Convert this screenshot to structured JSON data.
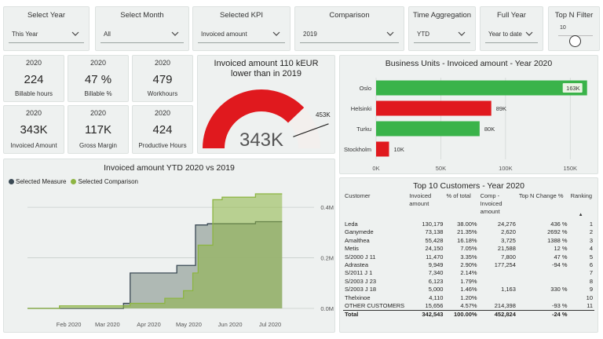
{
  "slicers": [
    {
      "title": "Select Year",
      "value": "This Year"
    },
    {
      "title": "Select Month",
      "value": "All"
    },
    {
      "title": "Selected KPI",
      "value": "Invoiced amount"
    },
    {
      "title": "Comparison",
      "value": "2019"
    },
    {
      "title": "Time Aggregation",
      "value": "YTD"
    },
    {
      "title": "Full Year",
      "value": "Year to date"
    }
  ],
  "topn": {
    "title": "Top N Filter",
    "value": "10"
  },
  "kpis": [
    {
      "year": "2020",
      "value": "224",
      "label": "Billable hours"
    },
    {
      "year": "2020",
      "value": "47 %",
      "label": "Billable %"
    },
    {
      "year": "2020",
      "value": "479",
      "label": "Workhours"
    },
    {
      "year": "2020",
      "value": "343K",
      "label": "Invoiced Amount"
    },
    {
      "year": "2020",
      "value": "117K",
      "label": "Gross Margin"
    },
    {
      "year": "2020",
      "value": "424",
      "label": "Productive Hours"
    }
  ],
  "gauge": {
    "title": "Invoiced amount 110 kEUR lower than in 2019",
    "value_label": "343K",
    "target_label": "453K",
    "value": 343,
    "target": 453,
    "max": 453,
    "fill_color": "#e0191e",
    "track_color": "#f3efed"
  },
  "line_chart": {
    "title": "Invoiced amount YTD 2020 vs 2019",
    "legend": [
      {
        "name": "Selected Measure",
        "color": "#3b4a55"
      },
      {
        "name": "Selected Comparison",
        "color": "#8db543"
      }
    ],
    "chart_data": {
      "type": "area",
      "x_ticks": [
        "Feb 2020",
        "Mar 2020",
        "Apr 2020",
        "May 2020",
        "Jun 2020",
        "Jul 2020"
      ],
      "y_ticks": [
        "0.0M",
        "0.2M",
        "0.4M"
      ],
      "ylim": [
        0,
        0.45
      ],
      "series": [
        {
          "name": "Selected Measure",
          "color": "#3b4a55",
          "points": [
            [
              "2020-01-01",
              0
            ],
            [
              "2020-03-13",
              0
            ],
            [
              "2020-03-13",
              0.02
            ],
            [
              "2020-03-18",
              0.02
            ],
            [
              "2020-03-18",
              0.14
            ],
            [
              "2020-04-22",
              0.14
            ],
            [
              "2020-04-22",
              0.17
            ],
            [
              "2020-05-06",
              0.17
            ],
            [
              "2020-05-06",
              0.33
            ],
            [
              "2020-05-15",
              0.33
            ],
            [
              "2020-05-15",
              0.335
            ],
            [
              "2020-06-20",
              0.335
            ],
            [
              "2020-06-20",
              0.343
            ],
            [
              "2020-07-10",
              0.343
            ]
          ]
        },
        {
          "name": "Selected Comparison",
          "color": "#8db543",
          "points": [
            [
              "2020-01-01",
              0
            ],
            [
              "2020-01-25",
              0
            ],
            [
              "2020-01-25",
              0.01
            ],
            [
              "2020-03-18",
              0.01
            ],
            [
              "2020-03-18",
              0.02
            ],
            [
              "2020-04-13",
              0.02
            ],
            [
              "2020-04-13",
              0.04
            ],
            [
              "2020-04-27",
              0.04
            ],
            [
              "2020-04-27",
              0.07
            ],
            [
              "2020-05-04",
              0.07
            ],
            [
              "2020-05-04",
              0.14
            ],
            [
              "2020-05-08",
              0.14
            ],
            [
              "2020-05-08",
              0.25
            ],
            [
              "2020-05-19",
              0.25
            ],
            [
              "2020-05-19",
              0.43
            ],
            [
              "2020-05-26",
              0.43
            ],
            [
              "2020-05-26",
              0.44
            ],
            [
              "2020-06-20",
              0.44
            ],
            [
              "2020-06-20",
              0.453
            ],
            [
              "2020-07-10",
              0.453
            ]
          ]
        }
      ]
    }
  },
  "bar_chart": {
    "title": "Business Units - Invoiced amount - Year 2020",
    "chart_data": {
      "type": "bar",
      "orientation": "horizontal",
      "categories": [
        "Oslo",
        "Helsinki",
        "Turku",
        "Stockholm"
      ],
      "values": [
        163,
        89,
        80,
        10
      ],
      "labels": [
        "163K",
        "89K",
        "80K",
        "10K"
      ],
      "colors": [
        "#3ab34a",
        "#e0191e",
        "#3ab34a",
        "#e0191e"
      ],
      "xlim": [
        0,
        165
      ],
      "x_ticks": [
        {
          "v": 0,
          "t": "0K"
        },
        {
          "v": 50,
          "t": "50K"
        },
        {
          "v": 100,
          "t": "100K"
        },
        {
          "v": 150,
          "t": "150K"
        }
      ]
    }
  },
  "table": {
    "title": "Top 10 Customers - Year 2020",
    "headers": [
      "Customer",
      "Invoiced amount",
      "% of total",
      "Comp - Invoiced amount",
      "Top N Change %",
      "Ranking"
    ],
    "rows": [
      [
        "Leda",
        "130,179",
        "38.00%",
        "24,276",
        "436 %",
        "1"
      ],
      [
        "Ganymede",
        "73,138",
        "21.35%",
        "2,620",
        "2692 %",
        "2"
      ],
      [
        "Amalthea",
        "55,428",
        "16.18%",
        "3,725",
        "1388 %",
        "3"
      ],
      [
        "Metis",
        "24,150",
        "7.05%",
        "21,588",
        "12 %",
        "4"
      ],
      [
        "S/2000 J 11",
        "11,470",
        "3.35%",
        "7,800",
        "47 %",
        "5"
      ],
      [
        "Adrastea",
        "9,949",
        "2.90%",
        "177,254",
        "-94 %",
        "6"
      ],
      [
        "S/2011 J 1",
        "7,340",
        "2.14%",
        "",
        "",
        "7"
      ],
      [
        "S/2003 J 23",
        "6,123",
        "1.79%",
        "",
        "",
        "8"
      ],
      [
        "S/2003 J 18",
        "5,000",
        "1.46%",
        "1,163",
        "330 %",
        "9"
      ],
      [
        "Thelxinoe",
        "4,110",
        "1.20%",
        "",
        "",
        "10"
      ],
      [
        "OTHER CUSTOMERS",
        "15,656",
        "4.57%",
        "214,398",
        "-93 %",
        "11"
      ]
    ],
    "total": [
      "Total",
      "342,543",
      "100.00%",
      "452,824",
      "-24 %",
      ""
    ]
  }
}
